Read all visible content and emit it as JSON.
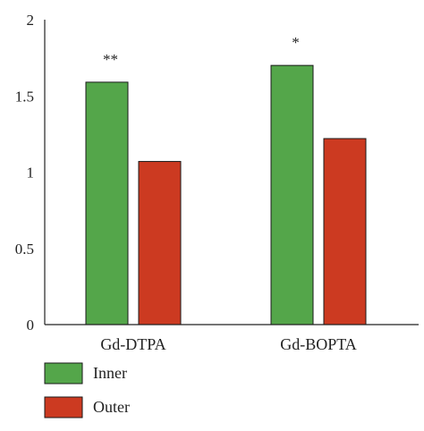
{
  "chart_data": {
    "type": "bar",
    "categories": [
      "Gd-DTPA",
      "Gd-BOPTA"
    ],
    "series": [
      {
        "name": "Inner",
        "values": [
          1.59,
          1.7
        ],
        "color": "#54a64a"
      },
      {
        "name": "Outer",
        "values": [
          1.07,
          1.22
        ],
        "color": "#cc3a21"
      }
    ],
    "annotations": [
      "**",
      "*"
    ],
    "ylim": [
      0,
      2
    ],
    "yticks": [
      0,
      0.5,
      1,
      1.5,
      2
    ],
    "ytick_labels": [
      "0",
      "0.5",
      "1",
      "1.5",
      "2"
    ],
    "title": "",
    "xlabel": "",
    "ylabel": "",
    "grid": false,
    "legend_position": "bottom-left"
  }
}
